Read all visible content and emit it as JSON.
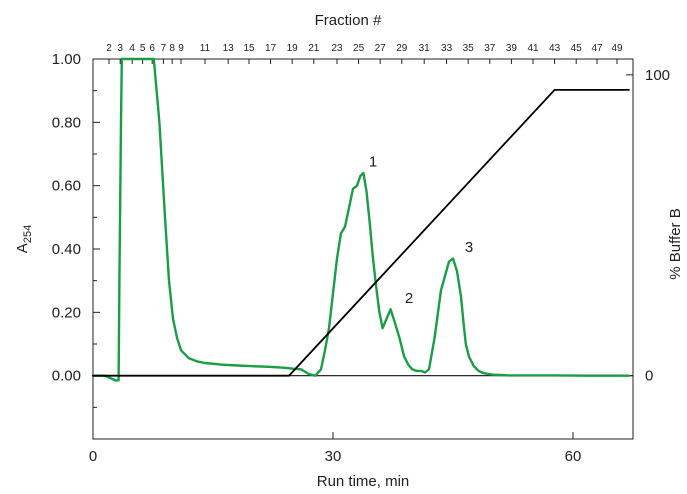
{
  "chart_data": {
    "type": "line",
    "title": "",
    "top_axis_label": "Fraction #",
    "xlabel": "Run time, min",
    "ylabel_main": "A",
    "ylabel_sub": "254",
    "y2label": "% Buffer B",
    "xlim": [
      0,
      67.5
    ],
    "ylim": [
      -0.2,
      1.0
    ],
    "y2lim": [
      0,
      100
    ],
    "x_ticks": [
      "0",
      "30",
      "60"
    ],
    "x_tick_values": [
      0,
      30,
      60
    ],
    "y_ticks": [
      "0.00",
      "0.20",
      "0.40",
      "0.60",
      "0.80",
      "1.00"
    ],
    "y_tick_values": [
      0,
      0.2,
      0.4,
      0.6,
      0.8,
      1.0
    ],
    "y2_ticks": [
      "0",
      "100"
    ],
    "y2_tick_values": [
      0,
      100
    ],
    "fraction_ticks": [
      "2",
      "3",
      "4",
      "5",
      "6",
      "7",
      "8",
      "9",
      "11",
      "13",
      "15",
      "17",
      "19",
      "21",
      "23",
      "25",
      "27",
      "29",
      "31",
      "33",
      "35",
      "37",
      "39",
      "41",
      "43",
      "45",
      "47",
      "49"
    ],
    "fraction_positions": [
      2.0,
      3.4,
      4.9,
      6.2,
      7.4,
      8.8,
      9.9,
      11.0,
      14.0,
      16.9,
      19.5,
      22.2,
      24.9,
      27.6,
      30.5,
      33.2,
      35.9,
      38.6,
      41.4,
      44.2,
      46.9,
      49.6,
      52.3,
      55.0,
      57.7,
      60.4,
      63.0,
      65.5
    ],
    "series": [
      {
        "name": "",
        "axis": "left",
        "color": "#1a9e45",
        "x": [
          0,
          1.5,
          2.8,
          3.2,
          3.3,
          3.5,
          3.6,
          7.6,
          8.3,
          9,
          9.5,
          10,
          10.5,
          11,
          12,
          13,
          14,
          16,
          18,
          20,
          22,
          24,
          25,
          26,
          27,
          27.8,
          28.5,
          29,
          29.5,
          30,
          30.5,
          31,
          31.5,
          32,
          32.5,
          33,
          33.4,
          33.8,
          34.2,
          34.6,
          35,
          35.4,
          35.8,
          36.2,
          36.7,
          37.2,
          37.7,
          38.3,
          38.9,
          39.4,
          39.9,
          40.4,
          41,
          41.5,
          42,
          42.7,
          43.5,
          44.5,
          45,
          45.5,
          46,
          46.3,
          46.6,
          47,
          47.6,
          48.2,
          48.8,
          49.5,
          50,
          51,
          52,
          55,
          58,
          62,
          67
        ],
        "y": [
          0,
          0,
          -0.015,
          -0.015,
          0.3,
          0.8,
          1.05,
          1.05,
          0.8,
          0.5,
          0.3,
          0.18,
          0.12,
          0.08,
          0.055,
          0.045,
          0.04,
          0.035,
          0.032,
          0.03,
          0.028,
          0.025,
          0.022,
          0.02,
          0.005,
          0.0,
          0.02,
          0.08,
          0.15,
          0.26,
          0.37,
          0.45,
          0.47,
          0.53,
          0.59,
          0.6,
          0.63,
          0.64,
          0.58,
          0.48,
          0.37,
          0.28,
          0.2,
          0.15,
          0.18,
          0.21,
          0.17,
          0.12,
          0.06,
          0.035,
          0.02,
          0.015,
          0.015,
          0.01,
          0.02,
          0.12,
          0.27,
          0.36,
          0.37,
          0.33,
          0.25,
          0.17,
          0.1,
          0.06,
          0.03,
          0.015,
          0.008,
          0.005,
          0.003,
          0.002,
          0.001,
          0.001,
          0.001,
          0.0,
          0.0
        ]
      },
      {
        "name": "",
        "axis": "right",
        "color": "#000000",
        "x": [
          0,
          24.5,
          57.7,
          67
        ],
        "y": [
          0,
          0,
          95,
          95
        ]
      }
    ],
    "annotations": [
      {
        "text": "1",
        "x": 35.0,
        "y": 0.66
      },
      {
        "text": "2",
        "x": 39.5,
        "y": 0.23
      },
      {
        "text": "3",
        "x": 47.0,
        "y": 0.39
      }
    ],
    "grid": false,
    "legend": "none"
  }
}
